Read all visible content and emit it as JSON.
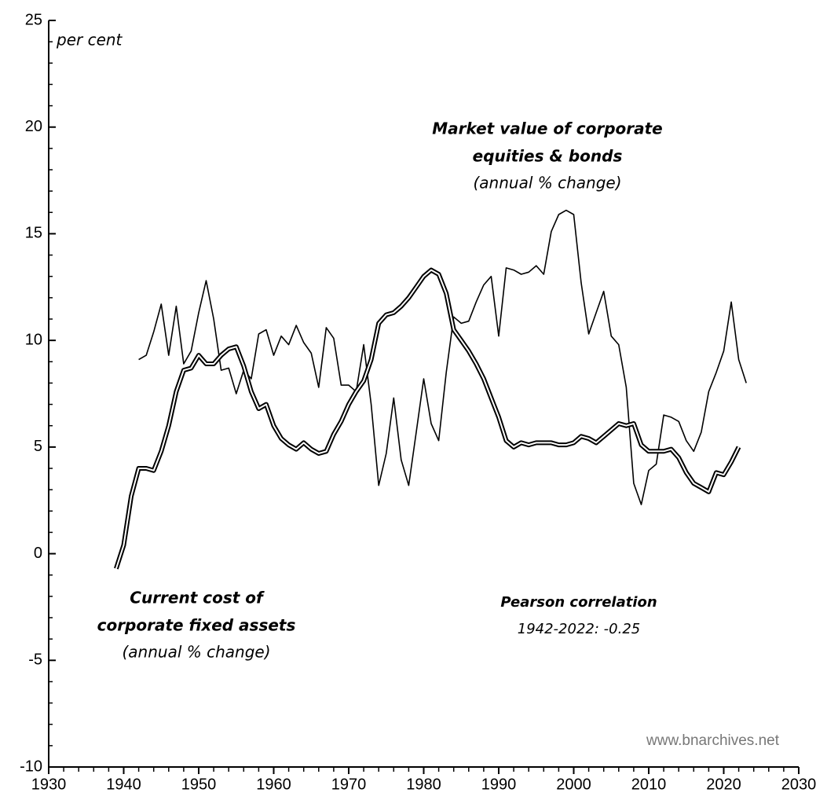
{
  "chart_data": {
    "type": "line",
    "x": [
      1939,
      1940,
      1941,
      1942,
      1943,
      1944,
      1945,
      1946,
      1947,
      1948,
      1949,
      1950,
      1951,
      1952,
      1953,
      1954,
      1955,
      1956,
      1957,
      1958,
      1959,
      1960,
      1961,
      1962,
      1963,
      1964,
      1965,
      1966,
      1967,
      1968,
      1969,
      1970,
      1971,
      1972,
      1973,
      1974,
      1975,
      1976,
      1977,
      1978,
      1979,
      1980,
      1981,
      1982,
      1983,
      1984,
      1985,
      1986,
      1987,
      1988,
      1989,
      1990,
      1991,
      1992,
      1993,
      1994,
      1995,
      1996,
      1997,
      1998,
      1999,
      2000,
      2001,
      2002,
      2003,
      2004,
      2005,
      2006,
      2007,
      2008,
      2009,
      2010,
      2011,
      2012,
      2013,
      2014,
      2015,
      2016,
      2017,
      2018,
      2019,
      2020,
      2021,
      2022,
      2023
    ],
    "series": [
      {
        "name": "Market value of corporate equities & bonds",
        "color": "#000000",
        "style": "thin",
        "values": [
          null,
          null,
          null,
          9.1,
          9.3,
          10.4,
          11.7,
          9.3,
          11.6,
          8.9,
          9.5,
          11.3,
          12.8,
          11.0,
          8.6,
          8.7,
          7.5,
          8.6,
          8.2,
          10.3,
          10.5,
          9.3,
          10.2,
          9.8,
          10.7,
          9.9,
          9.4,
          7.8,
          10.6,
          10.1,
          7.9,
          7.9,
          7.6,
          9.8,
          7.0,
          3.2,
          4.7,
          7.3,
          4.4,
          3.2,
          5.7,
          8.2,
          6.1,
          5.3,
          8.5,
          11.1,
          10.8,
          10.9,
          11.8,
          12.6,
          13.0,
          10.2,
          13.4,
          13.3,
          13.1,
          13.2,
          13.5,
          13.1,
          15.1,
          15.9,
          16.1,
          15.9,
          12.7,
          10.3,
          11.3,
          12.3,
          10.2,
          9.8,
          7.8,
          3.3,
          2.3,
          3.9,
          4.2,
          6.5,
          6.4,
          6.2,
          5.3,
          4.8,
          5.7,
          7.6,
          8.5,
          9.5,
          11.8,
          9.1,
          8.0
        ]
      },
      {
        "name": "Current cost of corporate fixed assets",
        "color": "#000000",
        "style": "double",
        "values": [
          -0.7,
          0.4,
          2.7,
          4.0,
          4.0,
          3.9,
          4.8,
          6.0,
          7.6,
          8.6,
          8.7,
          9.3,
          8.9,
          8.9,
          9.3,
          9.6,
          9.7,
          8.8,
          7.6,
          6.8,
          7.0,
          6.0,
          5.4,
          5.1,
          4.9,
          5.2,
          4.9,
          4.7,
          4.8,
          5.6,
          6.2,
          7.0,
          7.6,
          8.1,
          9.1,
          10.8,
          11.2,
          11.3,
          11.6,
          12.0,
          12.5,
          13.0,
          13.3,
          13.1,
          12.2,
          10.5,
          10.0,
          9.5,
          8.9,
          8.2,
          7.3,
          6.4,
          5.3,
          5.0,
          5.2,
          5.1,
          5.2,
          5.2,
          5.2,
          5.1,
          5.1,
          5.2,
          5.5,
          5.4,
          5.2,
          5.5,
          5.8,
          6.1,
          6.0,
          6.1,
          5.1,
          4.8,
          4.8,
          4.8,
          4.9,
          4.5,
          3.8,
          3.3,
          3.1,
          2.9,
          3.8,
          3.7,
          4.3,
          5.0,
          null
        ]
      }
    ],
    "xlim": [
      1930,
      2030
    ],
    "xticks": [
      1930,
      1940,
      1950,
      1960,
      1970,
      1980,
      1990,
      2000,
      2010,
      2020,
      2030
    ],
    "xminorticks": [
      1932,
      1934,
      1936,
      1938,
      1942,
      1944,
      1946,
      1948,
      1952,
      1954,
      1956,
      1958,
      1962,
      1964,
      1966,
      1968,
      1972,
      1974,
      1976,
      1978,
      1982,
      1984,
      1986,
      1988,
      1992,
      1994,
      1996,
      1998,
      2002,
      2004,
      2006,
      2008,
      2012,
      2014,
      2016,
      2018,
      2022,
      2024,
      2026,
      2028
    ],
    "ylim": [
      -10,
      25
    ],
    "yticks": [
      -10,
      -5,
      0,
      5,
      10,
      15,
      20,
      25
    ],
    "yminorticks": [
      -9,
      -8,
      -7,
      -6,
      -4,
      -3,
      -2,
      -1,
      1,
      2,
      3,
      4,
      6,
      7,
      8,
      9,
      11,
      12,
      13,
      14,
      16,
      17,
      18,
      19,
      21,
      22,
      23,
      24
    ],
    "ylabel": "per cent",
    "annotations": {
      "market": [
        "Market value of corporate",
        "equities & bonds",
        "(annual % change)"
      ],
      "cost": [
        "Current cost of",
        "corporate fixed assets",
        "(annual % change)"
      ],
      "pearson": [
        "Pearson correlation",
        "1942-2022: -0.25"
      ]
    },
    "source": "www.bnarchives.net"
  }
}
